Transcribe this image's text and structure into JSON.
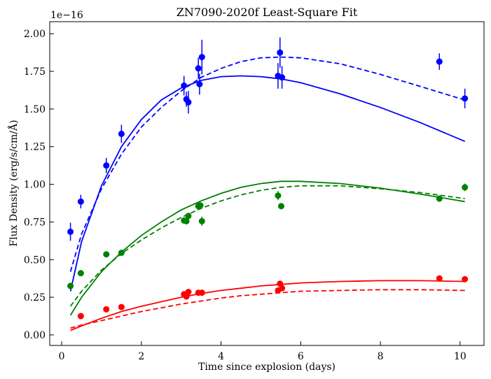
{
  "chart_data": {
    "type": "scatter",
    "title": "ZN7090-2020f Least-Square Fit",
    "xlabel": "Time since explosion (days)",
    "ylabel": "Flux Density (erg/s/cm/Å)",
    "offset_text": "1e−16",
    "xlim": [
      -0.3,
      10.6
    ],
    "ylim": [
      -0.07,
      2.08
    ],
    "xticks": [
      0,
      2,
      4,
      6,
      8,
      10
    ],
    "yticks": [
      0.0,
      0.25,
      0.5,
      0.75,
      1.0,
      1.25,
      1.5,
      1.75,
      2.0
    ],
    "ytick_labels": [
      "0.00",
      "0.25",
      "0.50",
      "0.75",
      "1.00",
      "1.25",
      "1.50",
      "1.75",
      "2.00"
    ],
    "grid": false,
    "series": [
      {
        "color": "#0000ff",
        "points": [
          {
            "x": 0.22,
            "y": 0.685,
            "err": 0.06
          },
          {
            "x": 0.48,
            "y": 0.885,
            "err": 0.045
          },
          {
            "x": 1.12,
            "y": 1.125,
            "err": 0.05
          },
          {
            "x": 1.5,
            "y": 1.335,
            "err": 0.06
          },
          {
            "x": 3.07,
            "y": 1.655,
            "err": 0.065
          },
          {
            "x": 3.13,
            "y": 1.565,
            "err": 0.05
          },
          {
            "x": 3.18,
            "y": 1.545,
            "err": 0.075
          },
          {
            "x": 3.43,
            "y": 1.77,
            "err": 0.07
          },
          {
            "x": 3.46,
            "y": 1.665,
            "err": 0.07
          },
          {
            "x": 3.52,
            "y": 1.845,
            "err": 0.115
          },
          {
            "x": 5.43,
            "y": 1.72,
            "err": 0.085
          },
          {
            "x": 5.48,
            "y": 1.875,
            "err": 0.1
          },
          {
            "x": 5.53,
            "y": 1.71,
            "err": 0.075
          },
          {
            "x": 9.48,
            "y": 1.815,
            "err": 0.055
          },
          {
            "x": 10.12,
            "y": 1.57,
            "err": 0.065
          }
        ],
        "fit_solid": [
          [
            0.22,
            0.29
          ],
          [
            0.5,
            0.62
          ],
          [
            1.0,
            0.99
          ],
          [
            1.5,
            1.25
          ],
          [
            2.0,
            1.43
          ],
          [
            2.5,
            1.56
          ],
          [
            3.0,
            1.64
          ],
          [
            3.5,
            1.69
          ],
          [
            4.0,
            1.715
          ],
          [
            4.5,
            1.72
          ],
          [
            5.0,
            1.715
          ],
          [
            5.5,
            1.7
          ],
          [
            6.0,
            1.675
          ],
          [
            7.0,
            1.6
          ],
          [
            8.0,
            1.51
          ],
          [
            9.0,
            1.41
          ],
          [
            10.12,
            1.285
          ]
        ],
        "fit_dashed": [
          [
            0.22,
            0.42
          ],
          [
            0.5,
            0.67
          ],
          [
            1.0,
            0.97
          ],
          [
            1.5,
            1.2
          ],
          [
            2.0,
            1.38
          ],
          [
            2.5,
            1.51
          ],
          [
            3.0,
            1.62
          ],
          [
            3.5,
            1.71
          ],
          [
            4.0,
            1.77
          ],
          [
            4.5,
            1.815
          ],
          [
            5.0,
            1.84
          ],
          [
            5.5,
            1.845
          ],
          [
            6.0,
            1.84
          ],
          [
            7.0,
            1.8
          ],
          [
            8.0,
            1.73
          ],
          [
            9.0,
            1.65
          ],
          [
            10.12,
            1.56
          ]
        ]
      },
      {
        "color": "#008000",
        "points": [
          {
            "x": 0.22,
            "y": 0.325,
            "err": 0.015
          },
          {
            "x": 0.48,
            "y": 0.41,
            "err": 0.015
          },
          {
            "x": 1.12,
            "y": 0.535,
            "err": 0.015
          },
          {
            "x": 1.5,
            "y": 0.545,
            "err": 0.015
          },
          {
            "x": 3.07,
            "y": 0.76,
            "err": 0.02
          },
          {
            "x": 3.13,
            "y": 0.755,
            "err": 0.02
          },
          {
            "x": 3.18,
            "y": 0.79,
            "err": 0.02
          },
          {
            "x": 3.43,
            "y": 0.855,
            "err": 0.02
          },
          {
            "x": 3.48,
            "y": 0.86,
            "err": 0.02
          },
          {
            "x": 3.52,
            "y": 0.755,
            "err": 0.03
          },
          {
            "x": 5.43,
            "y": 0.925,
            "err": 0.03
          },
          {
            "x": 5.51,
            "y": 0.855,
            "err": 0.02
          },
          {
            "x": 9.48,
            "y": 0.905,
            "err": 0.02
          },
          {
            "x": 10.12,
            "y": 0.98,
            "err": 0.025
          }
        ],
        "fit_solid": [
          [
            0.22,
            0.13
          ],
          [
            0.5,
            0.25
          ],
          [
            1.0,
            0.42
          ],
          [
            1.5,
            0.55
          ],
          [
            2.0,
            0.66
          ],
          [
            2.5,
            0.75
          ],
          [
            3.0,
            0.83
          ],
          [
            3.5,
            0.89
          ],
          [
            4.0,
            0.94
          ],
          [
            4.5,
            0.98
          ],
          [
            5.0,
            1.005
          ],
          [
            5.5,
            1.02
          ],
          [
            6.0,
            1.02
          ],
          [
            7.0,
            1.005
          ],
          [
            8.0,
            0.975
          ],
          [
            9.0,
            0.935
          ],
          [
            10.12,
            0.885
          ]
        ],
        "fit_dashed": [
          [
            0.22,
            0.19
          ],
          [
            0.5,
            0.29
          ],
          [
            1.0,
            0.43
          ],
          [
            1.5,
            0.54
          ],
          [
            2.0,
            0.63
          ],
          [
            2.5,
            0.71
          ],
          [
            3.0,
            0.78
          ],
          [
            3.5,
            0.84
          ],
          [
            4.0,
            0.89
          ],
          [
            4.5,
            0.93
          ],
          [
            5.0,
            0.96
          ],
          [
            5.5,
            0.98
          ],
          [
            6.0,
            0.99
          ],
          [
            7.0,
            0.99
          ],
          [
            8.0,
            0.97
          ],
          [
            9.0,
            0.945
          ],
          [
            10.12,
            0.905
          ]
        ]
      },
      {
        "color": "#ff0000",
        "points": [
          {
            "x": 0.48,
            "y": 0.125,
            "err": 0.01
          },
          {
            "x": 1.12,
            "y": 0.17,
            "err": 0.01
          },
          {
            "x": 1.5,
            "y": 0.185,
            "err": 0.01
          },
          {
            "x": 3.07,
            "y": 0.27,
            "err": 0.012
          },
          {
            "x": 3.13,
            "y": 0.255,
            "err": 0.012
          },
          {
            "x": 3.18,
            "y": 0.285,
            "err": 0.012
          },
          {
            "x": 3.43,
            "y": 0.28,
            "err": 0.012
          },
          {
            "x": 3.52,
            "y": 0.28,
            "err": 0.012
          },
          {
            "x": 5.43,
            "y": 0.295,
            "err": 0.012
          },
          {
            "x": 5.48,
            "y": 0.34,
            "err": 0.012
          },
          {
            "x": 5.53,
            "y": 0.31,
            "err": 0.012
          },
          {
            "x": 9.48,
            "y": 0.375,
            "err": 0.012
          },
          {
            "x": 10.12,
            "y": 0.37,
            "err": 0.012
          }
        ],
        "fit_solid": [
          [
            0.22,
            0.03
          ],
          [
            0.5,
            0.06
          ],
          [
            1.0,
            0.11
          ],
          [
            1.5,
            0.155
          ],
          [
            2.0,
            0.19
          ],
          [
            2.5,
            0.22
          ],
          [
            3.0,
            0.25
          ],
          [
            3.5,
            0.275
          ],
          [
            4.0,
            0.295
          ],
          [
            4.5,
            0.31
          ],
          [
            5.0,
            0.325
          ],
          [
            5.5,
            0.335
          ],
          [
            6.0,
            0.345
          ],
          [
            7.0,
            0.355
          ],
          [
            8.0,
            0.36
          ],
          [
            9.0,
            0.36
          ],
          [
            10.12,
            0.355
          ]
        ],
        "fit_dashed": [
          [
            0.22,
            0.045
          ],
          [
            0.5,
            0.065
          ],
          [
            1.0,
            0.095
          ],
          [
            1.5,
            0.125
          ],
          [
            2.0,
            0.155
          ],
          [
            2.5,
            0.18
          ],
          [
            3.0,
            0.205
          ],
          [
            3.5,
            0.225
          ],
          [
            4.0,
            0.245
          ],
          [
            4.5,
            0.26
          ],
          [
            5.0,
            0.27
          ],
          [
            5.5,
            0.28
          ],
          [
            6.0,
            0.29
          ],
          [
            7.0,
            0.295
          ],
          [
            8.0,
            0.3
          ],
          [
            9.0,
            0.3
          ],
          [
            10.12,
            0.295
          ]
        ]
      }
    ]
  }
}
